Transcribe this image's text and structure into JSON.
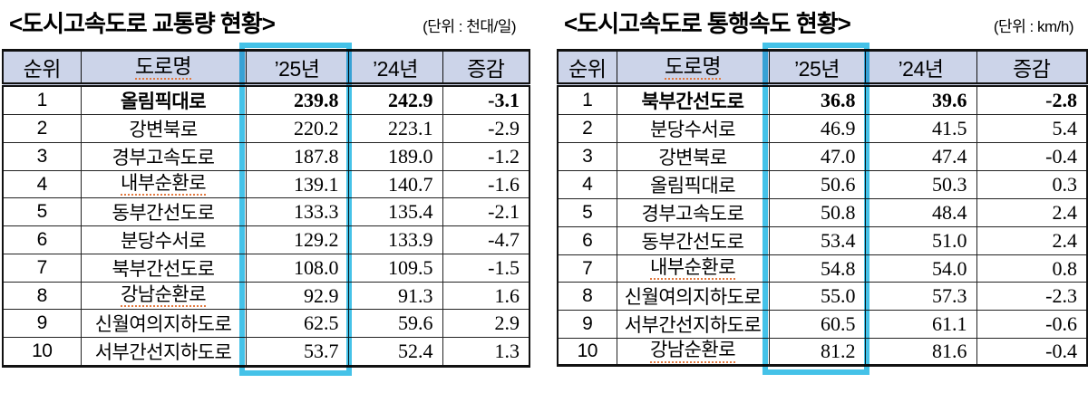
{
  "styles": {
    "header_bg": "#ccd4e9",
    "highlight_color": "#45c2e8",
    "squiggle_color": "#e2793f",
    "text_color": "#000000"
  },
  "tables": [
    {
      "title": "<도시고속도로 교통량 현황>",
      "unit": "(단위 : 천대/일)",
      "columns": [
        {
          "label": "순위"
        },
        {
          "label": "도로명",
          "squiggle": true
        },
        {
          "label": "’25년",
          "highlighted": true
        },
        {
          "label": "’24년"
        },
        {
          "label": "증감"
        }
      ],
      "rows": [
        {
          "rank": "1",
          "name": "올림픽대로",
          "y25": "239.8",
          "y24": "242.9",
          "diff": "-3.1",
          "bold": true
        },
        {
          "rank": "2",
          "name": "강변북로",
          "y25": "220.2",
          "y24": "223.1",
          "diff": "-2.9"
        },
        {
          "rank": "3",
          "name": "경부고속도로",
          "y25": "187.8",
          "y24": "189.0",
          "diff": "-1.2"
        },
        {
          "rank": "4",
          "name": "내부순환로",
          "y25": "139.1",
          "y24": "140.7",
          "diff": "-1.6",
          "squiggle": true
        },
        {
          "rank": "5",
          "name": "동부간선도로",
          "y25": "133.3",
          "y24": "135.4",
          "diff": "-2.1"
        },
        {
          "rank": "6",
          "name": "분당수서로",
          "y25": "129.2",
          "y24": "133.9",
          "diff": "-4.7"
        },
        {
          "rank": "7",
          "name": "북부간선도로",
          "y25": "108.0",
          "y24": "109.5",
          "diff": "-1.5"
        },
        {
          "rank": "8",
          "name": "강남순환로",
          "y25": "92.9",
          "y24": "91.3",
          "diff": "1.6",
          "squiggle": true
        },
        {
          "rank": "9",
          "name": "신월여의지하도로",
          "y25": "62.5",
          "y24": "59.6",
          "diff": "2.9"
        },
        {
          "rank": "10",
          "name": "서부간선지하도로",
          "y25": "53.7",
          "y24": "52.4",
          "diff": "1.3"
        }
      ]
    },
    {
      "title": "<도시고속도로 통행속도 현황>",
      "unit": "(단위 : km/h)",
      "columns": [
        {
          "label": "순위"
        },
        {
          "label": "도로명",
          "squiggle": true
        },
        {
          "label": "’25년",
          "highlighted": true
        },
        {
          "label": "’24년"
        },
        {
          "label": "증감"
        }
      ],
      "rows": [
        {
          "rank": "1",
          "name": "북부간선도로",
          "y25": "36.8",
          "y24": "39.6",
          "diff": "-2.8",
          "bold": true
        },
        {
          "rank": "2",
          "name": "분당수서로",
          "y25": "46.9",
          "y24": "41.5",
          "diff": "5.4"
        },
        {
          "rank": "3",
          "name": "강변북로",
          "y25": "47.0",
          "y24": "47.4",
          "diff": "-0.4"
        },
        {
          "rank": "4",
          "name": "올림픽대로",
          "y25": "50.6",
          "y24": "50.3",
          "diff": "0.3"
        },
        {
          "rank": "5",
          "name": "경부고속도로",
          "y25": "50.8",
          "y24": "48.4",
          "diff": "2.4"
        },
        {
          "rank": "6",
          "name": "동부간선도로",
          "y25": "53.4",
          "y24": "51.0",
          "diff": "2.4"
        },
        {
          "rank": "7",
          "name": "내부순환로",
          "y25": "54.8",
          "y24": "54.0",
          "diff": "0.8",
          "squiggle": true
        },
        {
          "rank": "8",
          "name": "신월여의지하도로",
          "y25": "55.0",
          "y24": "57.3",
          "diff": "-2.3"
        },
        {
          "rank": "9",
          "name": "서부간선지하도로",
          "y25": "60.5",
          "y24": "61.1",
          "diff": "-0.6"
        },
        {
          "rank": "10",
          "name": "강남순환로",
          "y25": "81.2",
          "y24": "81.6",
          "diff": "-0.4",
          "squiggle": true
        }
      ]
    }
  ]
}
